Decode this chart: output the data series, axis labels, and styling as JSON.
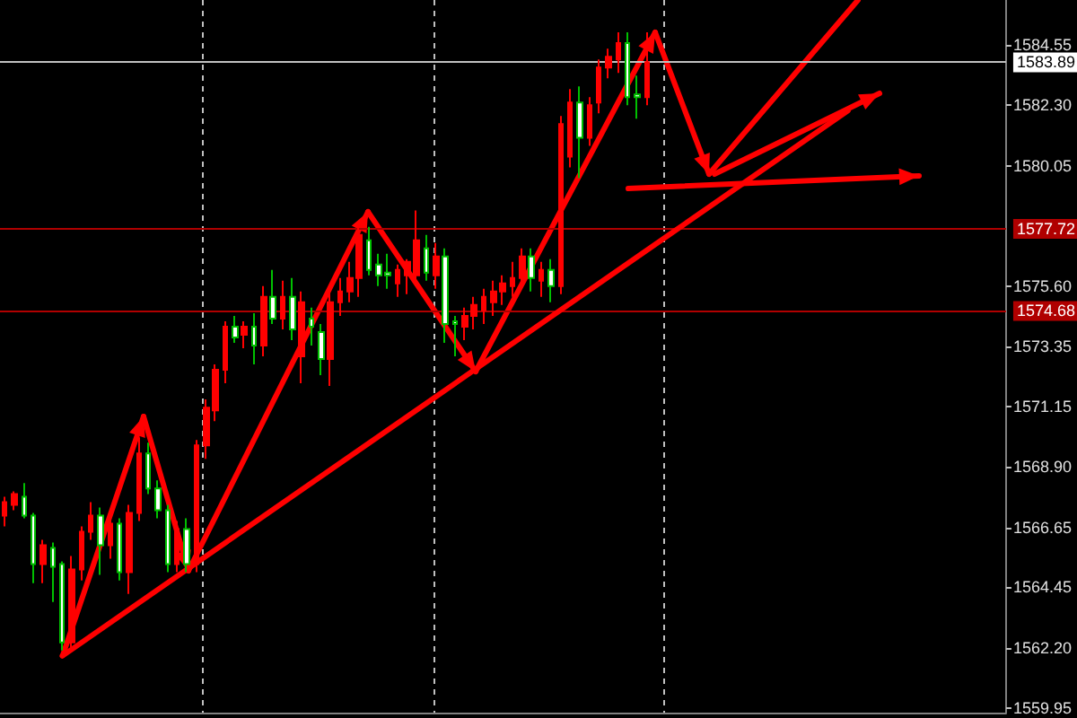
{
  "chart_data": {
    "type": "candlestick",
    "categories": [
      null,
      null,
      null,
      null,
      null,
      null,
      null,
      null,
      null,
      null,
      null,
      null,
      null,
      null,
      null,
      null,
      null,
      null,
      null,
      null,
      null,
      null,
      null,
      null,
      null,
      null,
      null,
      null,
      null,
      null,
      null,
      null,
      null,
      null,
      null,
      null,
      null,
      null,
      null,
      null,
      null,
      null,
      null,
      null,
      null,
      null,
      null,
      null,
      null,
      null,
      null,
      null,
      null,
      null,
      null,
      null,
      null,
      null,
      null,
      null,
      null,
      null,
      null,
      null,
      null,
      null,
      null,
      null,
      null,
      null,
      null,
      null,
      null,
      null,
      null,
      null,
      null,
      null,
      null,
      null,
      null,
      null,
      null,
      null,
      null,
      null,
      null,
      null,
      null,
      null,
      null,
      null,
      null,
      null,
      null,
      null,
      null,
      null,
      null,
      null,
      null,
      null,
      null,
      null,
      null
    ],
    "ohlc": [
      [
        1567.1,
        1567.8,
        1566.7,
        1567.6
      ],
      [
        1567.5,
        1568.0,
        1567.3,
        1567.9
      ],
      [
        1567.8,
        1568.3,
        1567.0,
        1567.1
      ],
      [
        1567.1,
        1567.2,
        1564.6,
        1565.3
      ],
      [
        1565.3,
        1566.2,
        1564.6,
        1566.0
      ],
      [
        1565.9,
        1566.1,
        1563.9,
        1565.2
      ],
      [
        1565.3,
        1565.4,
        1562.1,
        1562.4
      ],
      [
        1562.4,
        1565.6,
        1562.1,
        1565.1
      ],
      [
        1565.1,
        1566.7,
        1564.7,
        1566.5
      ],
      [
        1566.5,
        1567.6,
        1566.2,
        1567.1
      ],
      [
        1567.1,
        1567.4,
        1564.9,
        1566.0
      ],
      [
        1566.0,
        1567.0,
        1565.5,
        1566.8
      ],
      [
        1566.8,
        1567.0,
        1564.7,
        1565.0
      ],
      [
        1565.0,
        1567.5,
        1564.2,
        1567.2
      ],
      [
        1567.2,
        1570.0,
        1566.9,
        1569.4
      ],
      [
        1569.4,
        1569.8,
        1567.9,
        1568.1
      ],
      [
        1568.1,
        1568.4,
        1567.0,
        1567.3
      ],
      [
        1567.3,
        1567.5,
        1565.0,
        1565.3
      ],
      [
        1565.3,
        1566.9,
        1565.0,
        1566.6
      ],
      [
        1566.6,
        1567.0,
        1565.0,
        1565.3
      ],
      [
        1565.3,
        1569.9,
        1565.0,
        1569.7
      ],
      [
        1569.7,
        1571.4,
        1569.2,
        1571.1
      ],
      [
        1571.0,
        1572.7,
        1570.6,
        1572.5
      ],
      [
        1572.5,
        1574.3,
        1572.0,
        1574.1
      ],
      [
        1574.1,
        1574.5,
        1573.5,
        1573.7
      ],
      [
        1573.8,
        1574.3,
        1573.3,
        1574.1
      ],
      [
        1574.1,
        1574.6,
        1572.7,
        1573.4
      ],
      [
        1573.4,
        1575.6,
        1573.0,
        1575.2
      ],
      [
        1575.2,
        1576.2,
        1574.2,
        1574.4
      ],
      [
        1574.4,
        1575.8,
        1574.0,
        1575.2
      ],
      [
        1575.2,
        1575.9,
        1573.6,
        1574.0
      ],
      [
        1573.0,
        1575.4,
        1572.0,
        1575.0
      ],
      [
        1574.4,
        1574.8,
        1573.4,
        1574.1
      ],
      [
        1573.9,
        1574.2,
        1572.3,
        1572.9
      ],
      [
        1572.9,
        1575.4,
        1571.9,
        1575.0
      ],
      [
        1575.0,
        1575.9,
        1574.5,
        1575.4
      ],
      [
        1575.4,
        1576.5,
        1575.0,
        1575.9
      ],
      [
        1575.9,
        1578.0,
        1575.2,
        1577.5
      ],
      [
        1577.3,
        1577.8,
        1576.0,
        1576.2
      ],
      [
        1576.4,
        1576.8,
        1575.6,
        1576.0
      ],
      [
        1576.1,
        1576.8,
        1575.5,
        1576.0
      ],
      [
        1575.7,
        1576.4,
        1575.2,
        1576.2
      ],
      [
        1576.0,
        1576.6,
        1575.3,
        1576.5
      ],
      [
        1576.0,
        1578.4,
        1575.6,
        1577.3
      ],
      [
        1577.0,
        1577.5,
        1575.8,
        1576.1
      ],
      [
        1576.0,
        1577.2,
        1575.5,
        1576.7
      ],
      [
        1576.7,
        1577.0,
        1573.5,
        1574.2
      ],
      [
        1574.3,
        1574.5,
        1573.0,
        1574.2
      ],
      [
        1574.1,
        1574.8,
        1573.6,
        1574.5
      ],
      [
        1574.5,
        1575.2,
        1574.0,
        1574.9
      ],
      [
        1574.7,
        1575.5,
        1574.2,
        1575.2
      ],
      [
        1575.0,
        1575.8,
        1574.5,
        1575.4
      ],
      [
        1575.4,
        1576.0,
        1574.9,
        1575.7
      ],
      [
        1575.6,
        1576.5,
        1575.2,
        1575.9
      ],
      [
        1575.9,
        1577.0,
        1575.5,
        1576.7
      ],
      [
        1576.7,
        1577.0,
        1575.4,
        1575.9
      ],
      [
        1575.8,
        1576.5,
        1575.2,
        1576.2
      ],
      [
        1576.2,
        1576.6,
        1575.0,
        1575.6
      ],
      [
        1575.6,
        1581.9,
        1575.3,
        1581.6
      ],
      [
        1580.4,
        1582.9,
        1580.0,
        1582.4
      ],
      [
        1582.4,
        1583.0,
        1579.6,
        1581.1
      ],
      [
        1581.1,
        1582.6,
        1580.8,
        1582.3
      ],
      [
        1582.4,
        1584.0,
        1582.0,
        1583.7
      ],
      [
        1583.7,
        1584.4,
        1583.3,
        1584.1
      ],
      [
        1584.0,
        1585.0,
        1583.5,
        1584.6
      ],
      [
        1584.6,
        1585.0,
        1582.3,
        1582.6
      ],
      [
        1582.7,
        1583.4,
        1581.8,
        1582.6
      ],
      [
        1582.6,
        1585.0,
        1582.3,
        1583.9
      ],
      null,
      null,
      null,
      null,
      null,
      null,
      null,
      null,
      null,
      null,
      null,
      null,
      null,
      null,
      null,
      null,
      null,
      null,
      null,
      null,
      null,
      null,
      null,
      null,
      null,
      null,
      null,
      null,
      null,
      null,
      null,
      null,
      null,
      null,
      null,
      null,
      null
    ],
    "series": [
      {
        "type": "line",
        "color": "#ff0000",
        "values": [
          null,
          null,
          null,
          null,
          null,
          null,
          1561.9,
          null,
          null,
          null,
          null,
          null,
          null,
          null,
          null,
          null,
          null,
          null,
          null,
          null,
          null,
          null,
          null,
          null,
          null,
          null,
          null,
          null,
          null,
          null,
          null,
          null,
          null,
          null,
          null,
          null,
          null,
          null,
          null,
          null,
          null,
          null,
          null,
          null,
          null,
          null,
          null,
          null,
          null,
          null,
          null,
          null,
          null,
          null,
          null,
          null,
          null,
          null,
          null,
          null,
          null,
          null,
          null,
          null,
          null,
          null,
          null,
          null,
          null,
          null,
          null,
          null,
          null,
          null,
          null,
          null,
          null,
          null,
          null,
          null,
          null,
          null,
          null,
          null,
          null,
          null,
          null,
          null,
          1582.1,
          null,
          null,
          null,
          null,
          null,
          null,
          null,
          null,
          null,
          null,
          null,
          null,
          null,
          null,
          null,
          null
        ]
      }
    ],
    "ylim": [
      1559.8,
      1586.2
    ],
    "yticks": [
      1559.95,
      {
        "value": 1562.2,
        "label": "1562.20"
      },
      1564.45,
      1566.65,
      {
        "value": 1568.9,
        "label": "1568.90"
      },
      1571.15,
      1573.35,
      {
        "value": 1575.6,
        "label": "1575.60"
      },
      1580.05,
      {
        "value": 1582.3,
        "label": "1582.30"
      },
      1584.55
    ],
    "ref_lines": [
      {
        "axis": "y",
        "value": 1583.89,
        "label": "1583.89",
        "color": "#c0c0c0"
      },
      {
        "axis": "y",
        "value": 1577.72,
        "label": "1577.72",
        "color": "#b00000"
      },
      {
        "axis": "y",
        "value": 1574.68,
        "label": "1574.68",
        "color": "#b00000"
      }
    ],
    "tick_labels": "y"
  }
}
